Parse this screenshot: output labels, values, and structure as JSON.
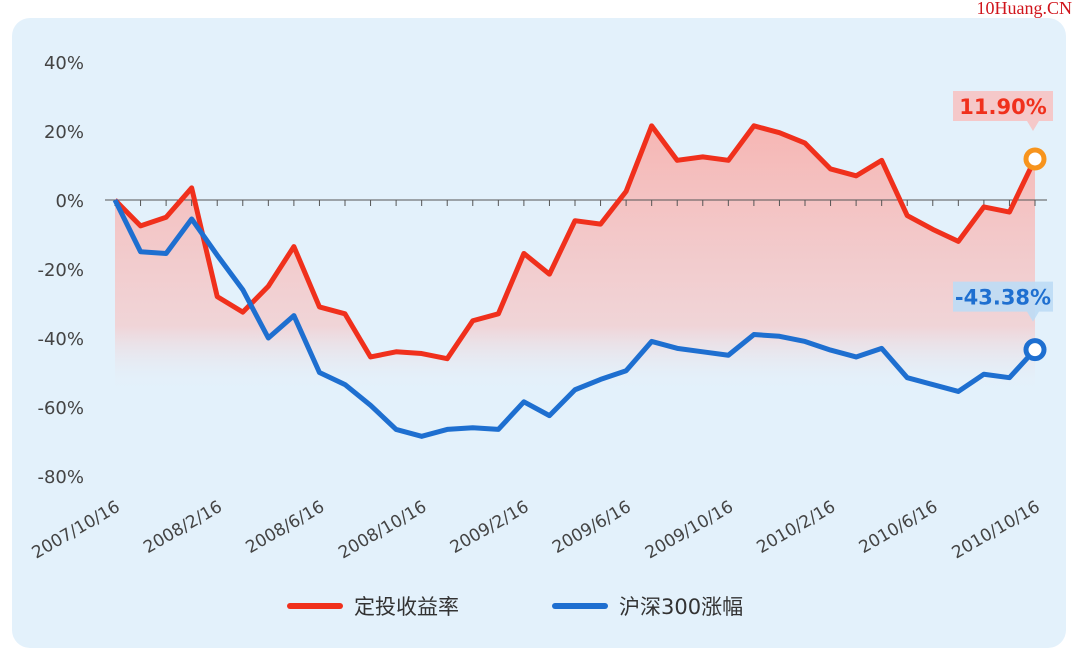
{
  "chart_data": {
    "type": "line",
    "watermark": "10Huang.CN",
    "categories": [
      "2007/10/16",
      null,
      null,
      null,
      "2008/2/16",
      null,
      null,
      null,
      "2008/6/16",
      null,
      null,
      null,
      "2008/10/16",
      null,
      null,
      null,
      "2009/2/16",
      null,
      null,
      null,
      "2009/6/16",
      null,
      null,
      null,
      "2009/10/16",
      null,
      null,
      null,
      "2010/2/16",
      null,
      null,
      null,
      "2010/6/16",
      null,
      null,
      null,
      "2010/10/16"
    ],
    "series": [
      {
        "name": "定投收益率",
        "color": "#f0301c",
        "values": [
          0,
          -7.5,
          -5,
          3.5,
          -28,
          -32.5,
          -25,
          -13.5,
          -31,
          -33,
          -45.5,
          -44,
          -44.5,
          -46,
          -35,
          -33,
          -15.5,
          -21.5,
          -6,
          -7,
          2.5,
          21.5,
          11.5,
          12.5,
          11.5,
          21.5,
          19.5,
          16.5,
          9,
          7,
          11.5,
          -4.5,
          -8.5,
          -12,
          -2,
          -3.5,
          11.9
        ],
        "value_labels": [
          null,
          null,
          null,
          null,
          null,
          null,
          null,
          null,
          null,
          null,
          null,
          null,
          null,
          null,
          null,
          null,
          null,
          null,
          null,
          null,
          null,
          null,
          null,
          null,
          null,
          null,
          null,
          null,
          null,
          null,
          null,
          null,
          null,
          null,
          null,
          null,
          "11.90%"
        ]
      },
      {
        "name": "沪深300涨幅",
        "color": "#1e6fd0",
        "values": [
          0,
          -15,
          -15.5,
          -5.5,
          -16,
          -26,
          -40,
          -33.5,
          -50,
          -53.5,
          -59.5,
          -66.5,
          -68.5,
          -66.5,
          -66,
          -66.5,
          -58.5,
          -62.5,
          -55,
          -52,
          -49.5,
          -41,
          -43,
          -44,
          -45,
          -39,
          -39.5,
          -41,
          -43.5,
          -45.5,
          -43,
          -51.5,
          -53.5,
          -55.5,
          -50.5,
          -51.5,
          -43.38
        ],
        "value_labels": [
          null,
          null,
          null,
          null,
          null,
          null,
          null,
          null,
          null,
          null,
          null,
          null,
          null,
          null,
          null,
          null,
          null,
          null,
          null,
          null,
          null,
          null,
          null,
          null,
          null,
          null,
          null,
          null,
          null,
          null,
          null,
          null,
          null,
          null,
          null,
          null,
          "-43.38%"
        ]
      }
    ],
    "ylim": [
      -80,
      40
    ],
    "yticks": [
      {
        "value": -80,
        "label": "-80%"
      },
      {
        "value": -60,
        "label": "-60%"
      },
      {
        "value": -40,
        "label": "-40%"
      },
      {
        "value": -20,
        "label": "-20%"
      },
      {
        "value": 0,
        "label": "0%"
      },
      {
        "value": 20,
        "label": "20%"
      },
      {
        "value": 40,
        "label": "40%"
      }
    ],
    "grid": false,
    "legend": "bottom"
  }
}
